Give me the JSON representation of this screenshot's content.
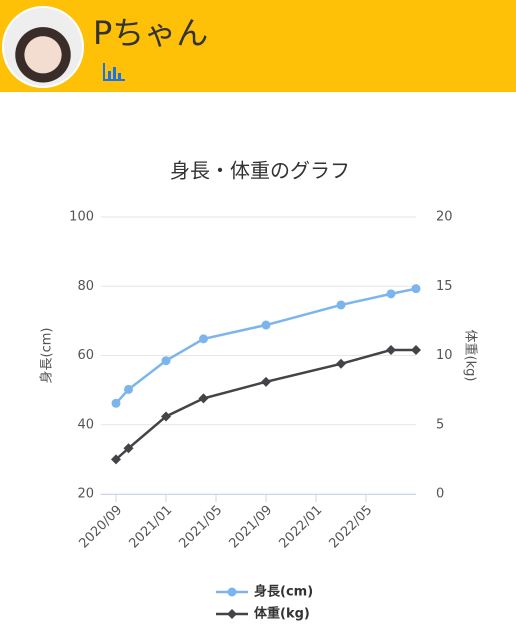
{
  "header": {
    "name": "Pちゃん"
  },
  "chart_data": {
    "type": "line",
    "title": "身長・体重のグラフ",
    "x": [
      "2020/09",
      "2020/10",
      "2021/01",
      "2021/04",
      "2021/09",
      "2022/03",
      "2022/07",
      "2022/09"
    ],
    "xlim": [
      "2020/08",
      "2022/09"
    ],
    "xticks": [
      "2020/09",
      "2021/01",
      "2021/05",
      "2021/09",
      "2022/01",
      "2022/05"
    ],
    "ylabel": "身長(cm)",
    "y2label": "体重(kg)",
    "ylim": [
      20,
      100
    ],
    "yticks": [
      20,
      40,
      60,
      80,
      100
    ],
    "y2lim": [
      0,
      20
    ],
    "y2ticks": [
      0,
      5,
      10,
      15,
      20
    ],
    "grid": true,
    "series": [
      {
        "name": "身長(cm)",
        "color": "#7cb5ec",
        "marker": "circle",
        "values": [
          46.2,
          50.2,
          58.5,
          64.8,
          68.8,
          74.6,
          77.8,
          79.3
        ]
      },
      {
        "name": "体重(kg)",
        "color": "#434348",
        "marker": "diamond",
        "axis": "y2",
        "values": [
          2.5,
          3.3,
          5.6,
          6.9,
          8.1,
          9.4,
          10.4,
          10.4
        ]
      }
    ]
  }
}
